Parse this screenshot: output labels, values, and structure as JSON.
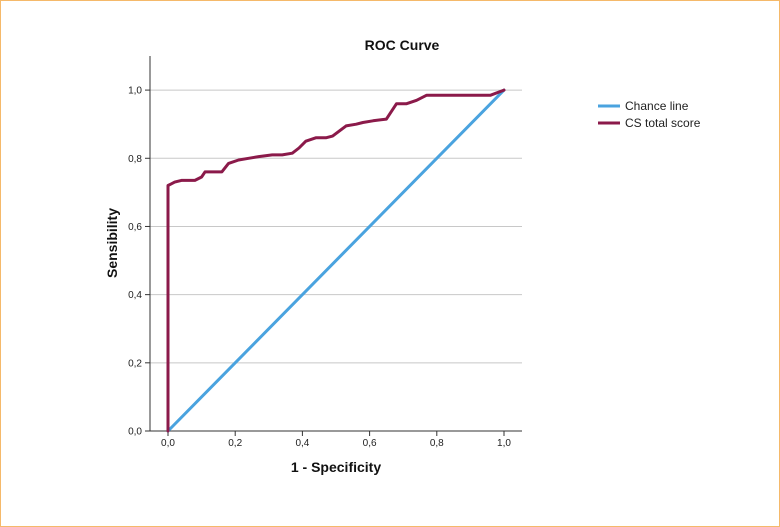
{
  "chart_data": {
    "type": "line",
    "title": "ROC Curve",
    "xlabel": "1 - Specificity",
    "ylabel": "Sensibility",
    "xlim": [
      0,
      1
    ],
    "ylim": [
      0,
      1.1
    ],
    "x_ticks": [
      "0,0",
      "0,2",
      "0,4",
      "0,6",
      "0,8",
      "1,0"
    ],
    "y_ticks": [
      "0,0",
      "0,2",
      "0,4",
      "0,6",
      "0,8",
      "1,0"
    ],
    "grid": "horizontal",
    "legend_position": "top-right",
    "series": [
      {
        "name": "Chance line",
        "color": "#4aa3df",
        "x": [
          0,
          1
        ],
        "y": [
          0,
          1
        ]
      },
      {
        "name": "CS total score",
        "color": "#8b1a4a",
        "x": [
          0,
          0,
          0.01,
          0.02,
          0.04,
          0.06,
          0.08,
          0.1,
          0.11,
          0.13,
          0.16,
          0.18,
          0.21,
          0.24,
          0.27,
          0.31,
          0.34,
          0.37,
          0.39,
          0.41,
          0.44,
          0.47,
          0.49,
          0.53,
          0.56,
          0.58,
          0.61,
          0.65,
          0.68,
          0.71,
          0.74,
          0.77,
          0.8,
          0.96,
          1.0
        ],
        "y": [
          0,
          0.72,
          0.725,
          0.73,
          0.735,
          0.735,
          0.735,
          0.745,
          0.76,
          0.76,
          0.76,
          0.785,
          0.795,
          0.8,
          0.805,
          0.81,
          0.81,
          0.815,
          0.83,
          0.85,
          0.86,
          0.86,
          0.865,
          0.895,
          0.9,
          0.905,
          0.91,
          0.915,
          0.96,
          0.96,
          0.97,
          0.985,
          0.985,
          0.985,
          1.0
        ]
      }
    ]
  }
}
